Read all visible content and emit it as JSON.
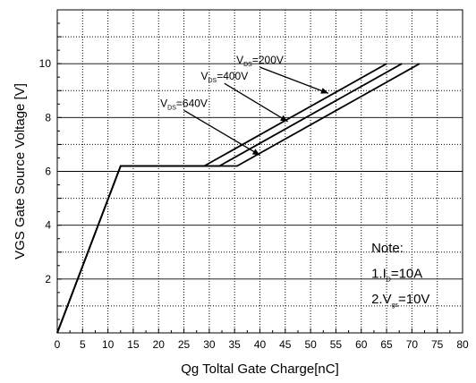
{
  "chart_data": {
    "type": "line",
    "xlabel": "Qg Toltal Gate Charge[nC]",
    "ylabel": "VGS Gate Source Voltage [V]",
    "xlim": [
      0,
      80
    ],
    "ylim": [
      0,
      12
    ],
    "x_ticks": [
      0,
      5,
      10,
      15,
      20,
      25,
      30,
      35,
      40,
      45,
      50,
      55,
      60,
      65,
      70,
      75,
      80
    ],
    "y_ticks": [
      2,
      4,
      6,
      8,
      10
    ],
    "grid": true,
    "series": [
      {
        "name": "VDS=200V",
        "points": [
          [
            0,
            0
          ],
          [
            12.5,
            6.2
          ],
          [
            29,
            6.2
          ],
          [
            65,
            10
          ]
        ]
      },
      {
        "name": "VDS=400V",
        "points": [
          [
            0,
            0
          ],
          [
            12.5,
            6.2
          ],
          [
            32,
            6.2
          ],
          [
            68,
            10
          ]
        ]
      },
      {
        "name": "VDS=640V",
        "points": [
          [
            0,
            0
          ],
          [
            12.5,
            6.2
          ],
          [
            35.5,
            6.2
          ],
          [
            71.5,
            10
          ]
        ]
      }
    ],
    "annotations": [
      {
        "main": "V",
        "sub": "DS",
        "rest": "=200V",
        "from": [
          40,
          10.0
        ],
        "to": [
          53.5,
          8.9
        ]
      },
      {
        "main": "V",
        "sub": "DS",
        "rest": "=400V",
        "from": [
          33,
          9.4
        ],
        "to": [
          45.5,
          7.85
        ]
      },
      {
        "main": "V",
        "sub": "DS",
        "rest": "=640V",
        "from": [
          25,
          8.4
        ],
        "to": [
          40,
          6.6
        ]
      }
    ],
    "note": {
      "title": "Note:",
      "line1": {
        "prefix": "1.I",
        "sub": "D",
        "rest": "=10A"
      },
      "line2": {
        "prefix": "2.V",
        "sub": "gs",
        "rest": "=10V"
      }
    }
  }
}
